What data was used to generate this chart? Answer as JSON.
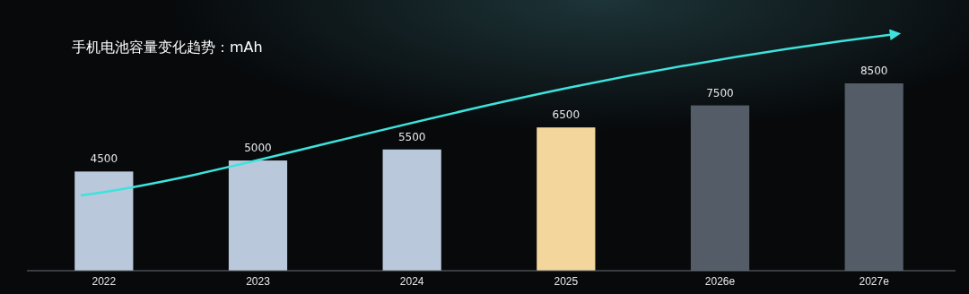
{
  "chart_data": {
    "type": "bar",
    "title": "手机电池容量变化趋势：mAh",
    "categories": [
      "2022",
      "2023",
      "2024",
      "2025",
      "2026e",
      "2027e"
    ],
    "values": [
      4500,
      5000,
      5500,
      6500,
      7500,
      8500
    ],
    "colors": [
      "#bac8db",
      "#bac8db",
      "#bac8db",
      "#f3d69c",
      "#535c67",
      "#535c67"
    ],
    "data_labels": true,
    "tick_labels": "x"
  }
}
